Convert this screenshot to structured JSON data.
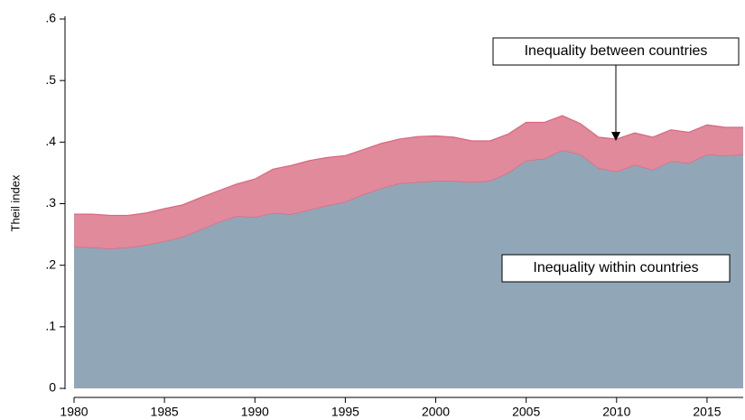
{
  "chart_data": {
    "type": "area",
    "stacked": true,
    "y_label": "Theil index",
    "x": [
      1980,
      1981,
      1982,
      1983,
      1984,
      1985,
      1986,
      1987,
      1988,
      1989,
      1990,
      1991,
      1992,
      1993,
      1994,
      1995,
      1996,
      1997,
      1998,
      1999,
      2000,
      2001,
      2002,
      2003,
      2004,
      2005,
      2006,
      2007,
      2008,
      2009,
      2010,
      2011,
      2012,
      2013,
      2014,
      2015,
      2016,
      2017
    ],
    "series": [
      {
        "name": "Inequality within countries",
        "color": "#91a7b8",
        "values": [
          0.23,
          0.229,
          0.227,
          0.229,
          0.233,
          0.239,
          0.246,
          0.258,
          0.27,
          0.28,
          0.278,
          0.285,
          0.283,
          0.29,
          0.297,
          0.303,
          0.315,
          0.325,
          0.333,
          0.335,
          0.337,
          0.337,
          0.335,
          0.337,
          0.35,
          0.37,
          0.373,
          0.387,
          0.38,
          0.358,
          0.352,
          0.363,
          0.355,
          0.369,
          0.366,
          0.38,
          0.378,
          0.38
        ]
      },
      {
        "name": "Inequality between countries",
        "color": "#e08a9b",
        "values": [
          0.053,
          0.054,
          0.054,
          0.052,
          0.052,
          0.053,
          0.052,
          0.052,
          0.051,
          0.052,
          0.062,
          0.071,
          0.079,
          0.08,
          0.078,
          0.075,
          0.073,
          0.073,
          0.072,
          0.074,
          0.073,
          0.071,
          0.067,
          0.065,
          0.063,
          0.062,
          0.059,
          0.056,
          0.05,
          0.05,
          0.053,
          0.052,
          0.053,
          0.051,
          0.05,
          0.048,
          0.046,
          0.044
        ]
      }
    ],
    "edge_color": "#d9667f",
    "xlim": [
      1980,
      2017
    ],
    "xticks": [
      1980,
      1985,
      1990,
      1995,
      2000,
      2005,
      2010,
      2015
    ],
    "ylim": [
      0,
      0.6
    ],
    "yticks": [
      0,
      {
        "value": 0.1,
        "label": ".1"
      },
      {
        "value": 0.2,
        "label": ".2"
      },
      {
        "value": 0.3,
        "label": ".3"
      },
      {
        "value": 0.4,
        "label": ".4"
      },
      {
        "value": 0.5,
        "label": ".5"
      },
      {
        "value": 0.6,
        "label": ".6"
      }
    ]
  }
}
